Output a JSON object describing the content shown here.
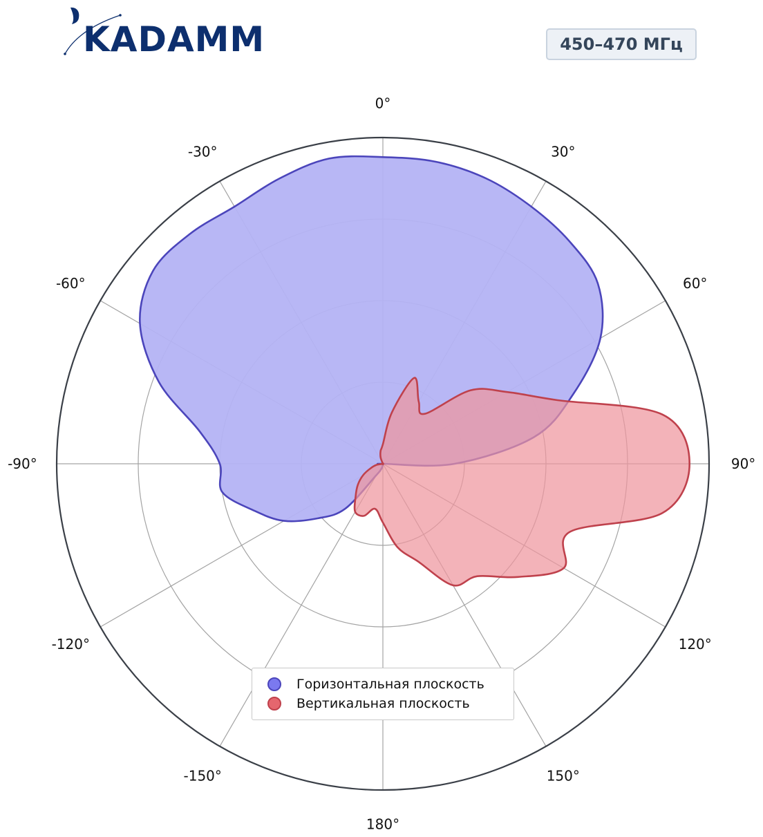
{
  "header": {
    "logo_text": "KADAMM",
    "frequency_badge": "450–470 МГц"
  },
  "colors": {
    "horizontal_fill": "#b4b3f4",
    "horizontal_line": "#4b45bb",
    "vertical_fill": "#ee959e",
    "vertical_line": "#bf414c",
    "frame": "#3a3f47",
    "grid": "#a3a3a3",
    "logo": "#0d2f6e"
  },
  "chart_data": {
    "type": "polar-area",
    "theta_direction": "clockwise",
    "theta_zero": "top",
    "angle_ticks": [
      "0°",
      "30°",
      "60°",
      "90°",
      "120°",
      "150°",
      "180°",
      "-150°",
      "-120°",
      "-90°",
      "-60°",
      "-30°"
    ],
    "radial_range": [
      0,
      1
    ],
    "radial_grid": [
      0.25,
      0.5,
      0.75,
      1.0
    ],
    "radial_tick_labels_shown": false,
    "legend_placement": "bottom-center",
    "series": [
      {
        "name": "Горизонтальная плоскость",
        "theta_deg": [
          -180,
          -170,
          -160,
          -150,
          -140,
          -130,
          -120,
          -110,
          -100,
          -90,
          -80,
          -70,
          -60,
          -50,
          -40,
          -30,
          -20,
          -10,
          0,
          10,
          20,
          30,
          40,
          50,
          60,
          70,
          80,
          90,
          100,
          110,
          120,
          130,
          140,
          150,
          160,
          170
        ],
        "r": [
          0.0,
          0.01,
          0.02,
          0.04,
          0.18,
          0.26,
          0.35,
          0.42,
          0.5,
          0.5,
          0.57,
          0.73,
          0.86,
          0.92,
          0.92,
          0.91,
          0.93,
          0.95,
          0.94,
          0.94,
          0.93,
          0.91,
          0.89,
          0.86,
          0.77,
          0.62,
          0.47,
          0.22,
          0.0,
          0.0,
          0.0,
          0.0,
          0.0,
          0.0,
          0.0,
          0.0
        ]
      },
      {
        "name": "Вертикальная плоскость",
        "theta_deg": [
          -180,
          -170,
          -160,
          -150,
          -140,
          -130,
          -120,
          -110,
          -100,
          -90,
          -80,
          -70,
          -60,
          -50,
          -40,
          -30,
          -20,
          -10,
          0,
          10,
          20,
          30,
          40,
          50,
          60,
          70,
          80,
          90,
          100,
          110,
          120,
          130,
          140,
          150,
          160,
          170
        ],
        "r": [
          0.18,
          0.14,
          0.17,
          0.17,
          0.13,
          0.1,
          0.07,
          0.04,
          0.02,
          0.0,
          0.0,
          0.0,
          0.0,
          0.0,
          0.0,
          0.0,
          0.02,
          0.04,
          0.06,
          0.16,
          0.28,
          0.22,
          0.2,
          0.35,
          0.44,
          0.57,
          0.87,
          0.94,
          0.87,
          0.61,
          0.64,
          0.54,
          0.45,
          0.43,
          0.32,
          0.26
        ]
      }
    ]
  }
}
